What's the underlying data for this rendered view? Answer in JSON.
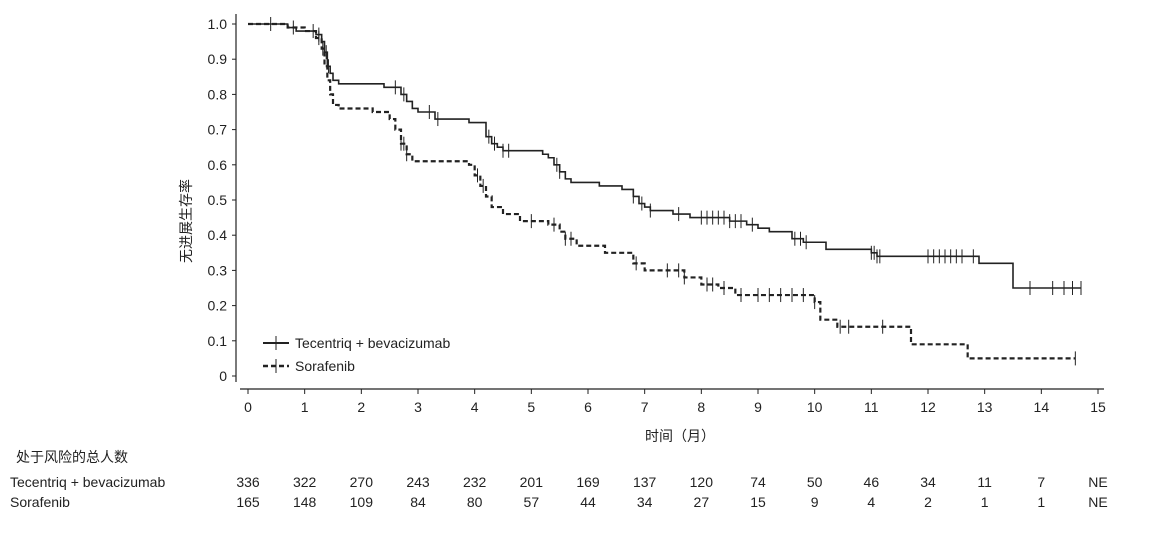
{
  "chart_data": {
    "type": "line",
    "subtype": "kaplan-meier step",
    "xlabel": "时间（月）",
    "ylabel": "无进展生存率",
    "xlim": [
      0,
      15
    ],
    "ylim": [
      0,
      1.0
    ],
    "x_ticks": [
      "0",
      "1",
      "2",
      "3",
      "4",
      "5",
      "6",
      "7",
      "8",
      "9",
      "10",
      "11",
      "12",
      "13",
      "14",
      "15"
    ],
    "y_ticks": [
      "0",
      "0.1",
      "0.2",
      "0.3",
      "0.4",
      "0.5",
      "0.6",
      "0.7",
      "0.8",
      "0.9",
      "1.0"
    ],
    "grid": false,
    "legend_position": "bottom-left",
    "series": [
      {
        "name": "Tecentriq + bevacizumab",
        "line_style": "solid",
        "color": "#222222",
        "steps": [
          [
            0,
            1.0
          ],
          [
            0.7,
            0.99
          ],
          [
            0.85,
            0.98
          ],
          [
            1.2,
            0.97
          ],
          [
            1.3,
            0.95
          ],
          [
            1.35,
            0.92
          ],
          [
            1.4,
            0.88
          ],
          [
            1.45,
            0.86
          ],
          [
            1.5,
            0.84
          ],
          [
            1.6,
            0.83
          ],
          [
            2.4,
            0.82
          ],
          [
            2.7,
            0.8
          ],
          [
            2.8,
            0.78
          ],
          [
            2.9,
            0.76
          ],
          [
            3.0,
            0.75
          ],
          [
            3.3,
            0.73
          ],
          [
            3.9,
            0.72
          ],
          [
            4.2,
            0.68
          ],
          [
            4.3,
            0.66
          ],
          [
            4.4,
            0.65
          ],
          [
            4.5,
            0.64
          ],
          [
            5.2,
            0.63
          ],
          [
            5.3,
            0.62
          ],
          [
            5.4,
            0.6
          ],
          [
            5.5,
            0.58
          ],
          [
            5.6,
            0.56
          ],
          [
            5.7,
            0.55
          ],
          [
            6.2,
            0.54
          ],
          [
            6.6,
            0.53
          ],
          [
            6.8,
            0.51
          ],
          [
            6.9,
            0.49
          ],
          [
            7.0,
            0.48
          ],
          [
            7.1,
            0.47
          ],
          [
            7.5,
            0.46
          ],
          [
            7.8,
            0.45
          ],
          [
            8.5,
            0.44
          ],
          [
            8.8,
            0.43
          ],
          [
            9.0,
            0.42
          ],
          [
            9.2,
            0.41
          ],
          [
            9.6,
            0.39
          ],
          [
            9.8,
            0.38
          ],
          [
            10.2,
            0.36
          ],
          [
            11.0,
            0.35
          ],
          [
            11.1,
            0.34
          ],
          [
            12.9,
            0.32
          ],
          [
            13.5,
            0.25
          ],
          [
            14.7,
            0.25
          ]
        ],
        "censor_x": [
          0.4,
          0.8,
          1.15,
          1.25,
          1.38,
          1.42,
          2.6,
          2.75,
          3.2,
          3.35,
          4.25,
          4.35,
          4.5,
          4.6,
          5.45,
          5.5,
          6.8,
          6.95,
          7.1,
          7.6,
          8.0,
          8.1,
          8.2,
          8.3,
          8.4,
          8.5,
          8.6,
          8.7,
          8.9,
          9.65,
          9.75,
          9.85,
          11.0,
          11.05,
          11.1,
          11.15,
          12.0,
          12.1,
          12.2,
          12.3,
          12.4,
          12.5,
          12.6,
          12.8,
          13.8,
          14.2,
          14.4,
          14.55,
          14.7
        ]
      },
      {
        "name": "Sorafenib",
        "line_style": "dashed",
        "color": "#222222",
        "steps": [
          [
            0,
            1.0
          ],
          [
            0.7,
            0.99
          ],
          [
            1.0,
            0.98
          ],
          [
            1.2,
            0.96
          ],
          [
            1.3,
            0.93
          ],
          [
            1.35,
            0.88
          ],
          [
            1.4,
            0.84
          ],
          [
            1.45,
            0.8
          ],
          [
            1.5,
            0.77
          ],
          [
            1.6,
            0.76
          ],
          [
            2.2,
            0.75
          ],
          [
            2.5,
            0.73
          ],
          [
            2.6,
            0.7
          ],
          [
            2.7,
            0.66
          ],
          [
            2.8,
            0.63
          ],
          [
            2.9,
            0.61
          ],
          [
            3.3,
            0.61
          ],
          [
            3.9,
            0.6
          ],
          [
            4.0,
            0.57
          ],
          [
            4.1,
            0.54
          ],
          [
            4.2,
            0.51
          ],
          [
            4.3,
            0.48
          ],
          [
            4.5,
            0.46
          ],
          [
            4.8,
            0.44
          ],
          [
            5.3,
            0.43
          ],
          [
            5.5,
            0.41
          ],
          [
            5.6,
            0.39
          ],
          [
            5.8,
            0.37
          ],
          [
            6.3,
            0.35
          ],
          [
            6.8,
            0.32
          ],
          [
            7.0,
            0.3
          ],
          [
            7.7,
            0.28
          ],
          [
            8.0,
            0.26
          ],
          [
            8.3,
            0.25
          ],
          [
            8.6,
            0.23
          ],
          [
            10.0,
            0.21
          ],
          [
            10.1,
            0.16
          ],
          [
            10.4,
            0.14
          ],
          [
            11.7,
            0.09
          ],
          [
            12.7,
            0.05
          ],
          [
            14.6,
            0.05
          ]
        ],
        "censor_x": [
          1.25,
          1.32,
          2.7,
          2.75,
          2.8,
          4.05,
          4.15,
          5.0,
          5.4,
          5.6,
          5.7,
          6.85,
          7.4,
          7.6,
          7.7,
          8.1,
          8.2,
          8.4,
          8.7,
          9.0,
          9.2,
          9.4,
          9.6,
          9.8,
          10.0,
          10.45,
          10.6,
          11.2,
          14.6
        ]
      }
    ],
    "risk_table": {
      "title": "处于风险的总人数",
      "rows": [
        {
          "label": "Tecentriq + bevacizumab",
          "values": [
            "336",
            "322",
            "270",
            "243",
            "232",
            "201",
            "169",
            "137",
            "120",
            "74",
            "50",
            "46",
            "34",
            "11",
            "7",
            "NE"
          ]
        },
        {
          "label": "Sorafenib",
          "values": [
            "165",
            "148",
            "109",
            "84",
            "80",
            "57",
            "44",
            "34",
            "27",
            "15",
            "9",
            "4",
            "2",
            "1",
            "1",
            "NE"
          ]
        }
      ]
    }
  }
}
